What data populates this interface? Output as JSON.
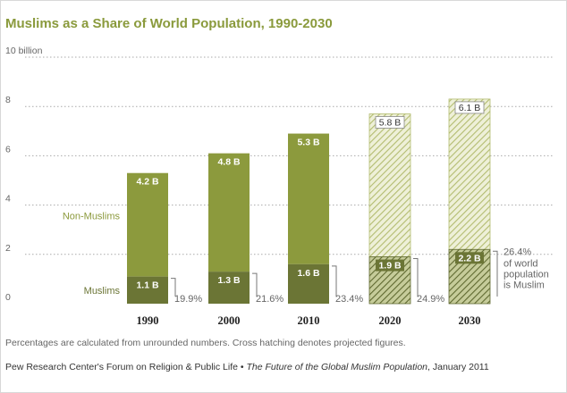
{
  "page": {
    "title": "Muslims as a Share of World Population, 1990-2030",
    "note": "Percentages are calculated from unrounded numbers. Cross hatching denotes projected figures.",
    "source_org": "Pew Research Center's Forum on Religion & Public Life",
    "source_sep": " • ",
    "source_title": "The Future of the Global Muslim Population",
    "source_date": ", January 2011"
  },
  "chart_data": {
    "type": "bar",
    "stacked": true,
    "categories": [
      "1990",
      "2000",
      "2010",
      "2020",
      "2030"
    ],
    "projected": [
      false,
      false,
      false,
      true,
      true
    ],
    "series": [
      {
        "name": "Muslims",
        "values": [
          1.1,
          1.3,
          1.6,
          1.9,
          2.2
        ],
        "labels": [
          "1.1 B",
          "1.3 B",
          "1.6 B",
          "1.9 B",
          "2.2 B"
        ]
      },
      {
        "name": "Non-Muslims",
        "values": [
          4.2,
          4.8,
          5.3,
          5.8,
          6.1
        ],
        "labels": [
          "4.2 B",
          "4.8 B",
          "5.3 B",
          "5.8 B",
          "6.1 B"
        ]
      }
    ],
    "share_labels": [
      "19.9%",
      "21.6%",
      "23.4%",
      "24.9%",
      "26.4%"
    ],
    "share_note": [
      "of world",
      "population",
      "is Muslim"
    ],
    "yticks": [
      0,
      2,
      4,
      6,
      8,
      10
    ],
    "ytick_labels": [
      "0",
      "2",
      "4",
      "6",
      "8",
      "10 billion"
    ],
    "ylim": [
      0,
      10
    ],
    "grid": true,
    "colors": {
      "muslim": "#6b7535",
      "non_muslim": "#8c9a3d",
      "hatch_light_bg": "#eef0d8",
      "hatch_light_line": "#b3bc70",
      "hatch_dark_bg": "#c6cc9a",
      "hatch_dark_line": "#5f6930",
      "grid": "#aaaaaa"
    }
  }
}
